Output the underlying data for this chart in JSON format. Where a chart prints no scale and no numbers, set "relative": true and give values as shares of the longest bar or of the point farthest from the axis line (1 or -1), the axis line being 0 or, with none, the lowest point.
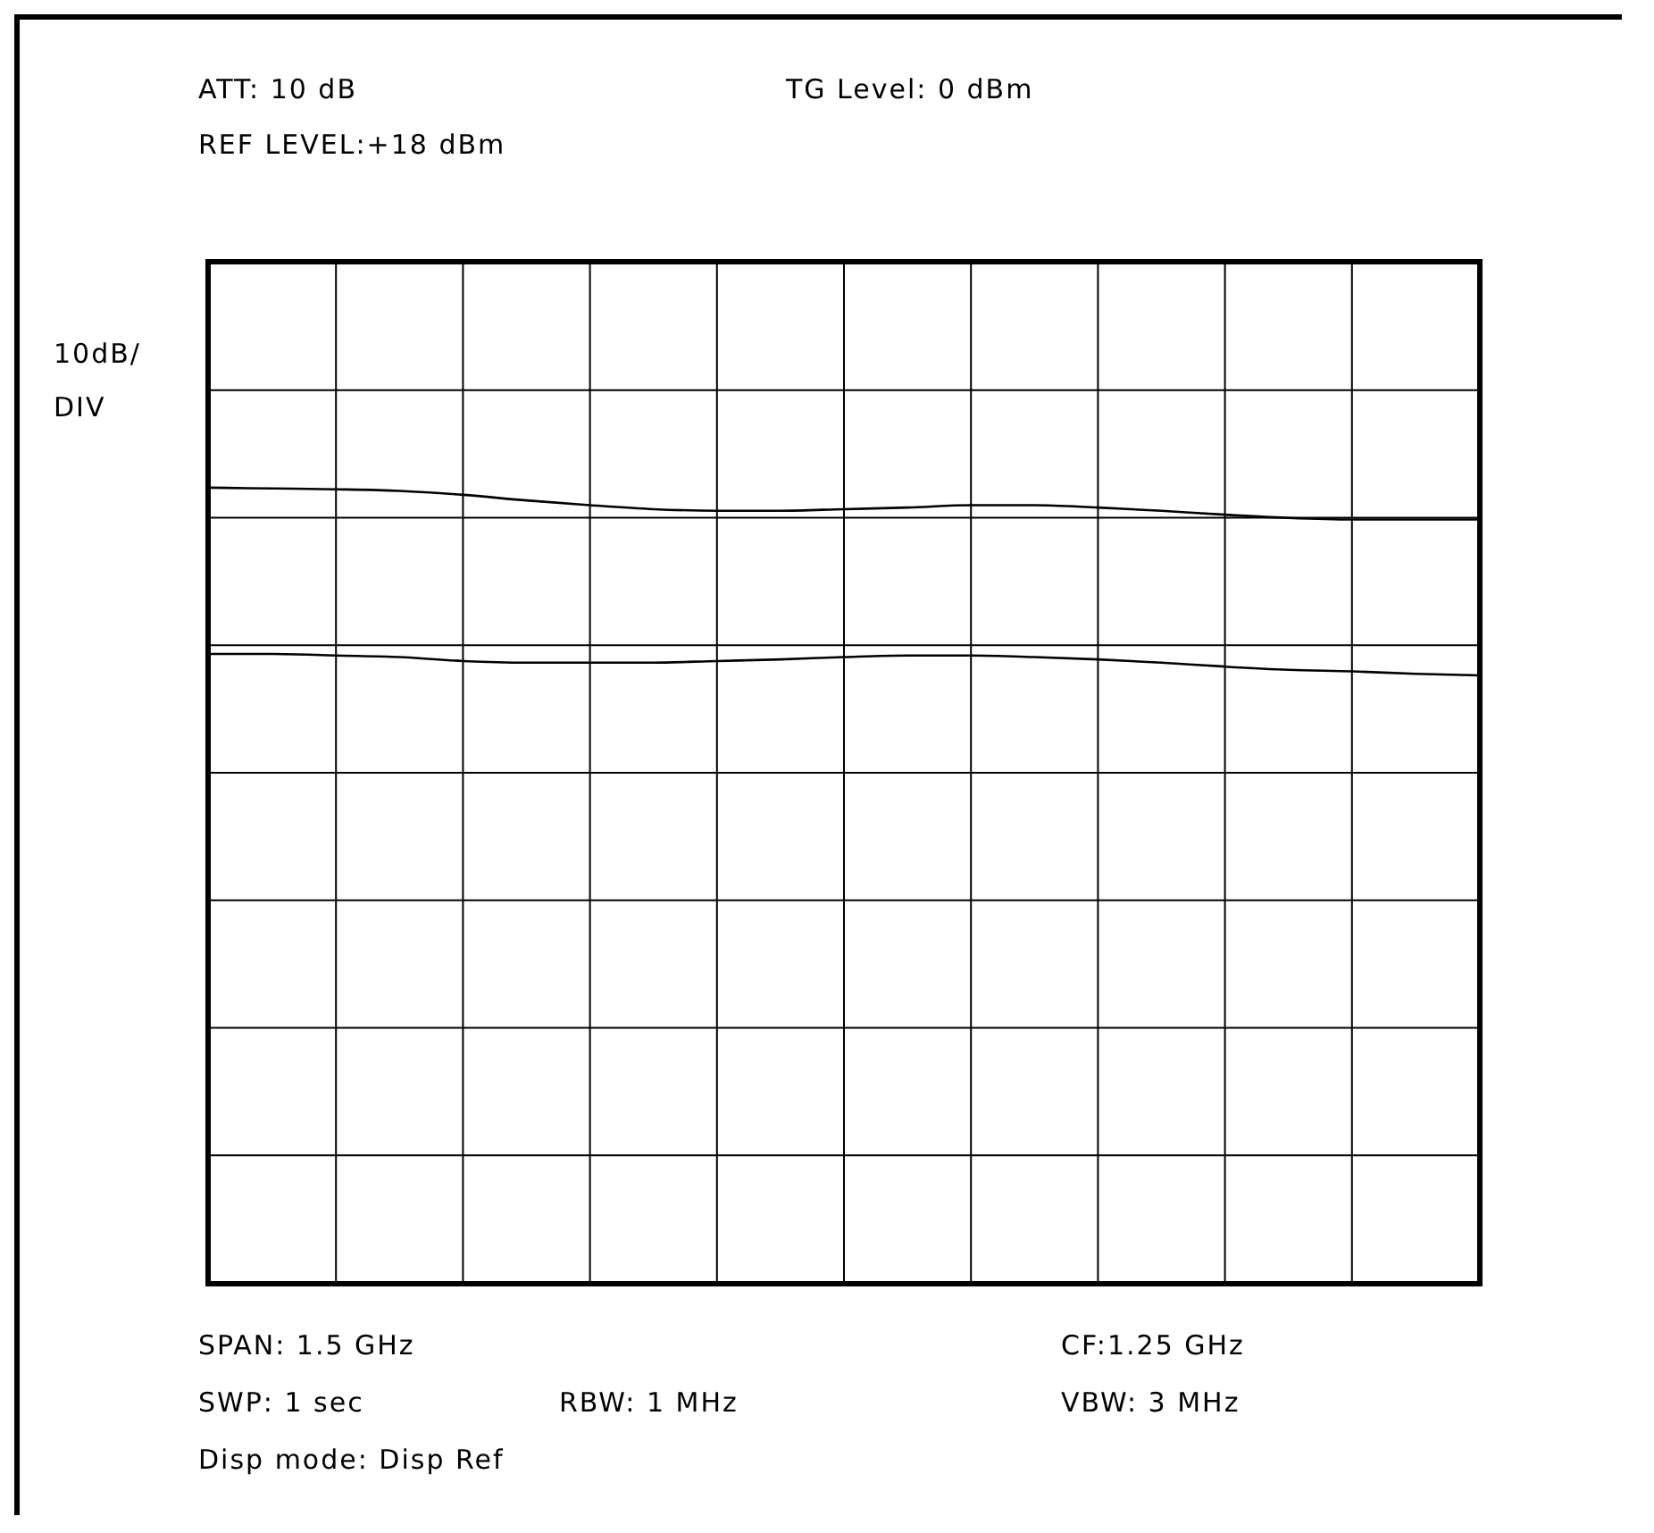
{
  "chart_data": {
    "type": "line",
    "relative": true,
    "grid": true,
    "categories": [
      null,
      null,
      null,
      null,
      null,
      null,
      null,
      null,
      null,
      null,
      null,
      null,
      null,
      null,
      null,
      null,
      null,
      null,
      null,
      null,
      null
    ],
    "series": [
      {
        "color": "#000000",
        "values": [
          1,
          0.999,
          0.998,
          0.996,
          0.991,
          0.984,
          0.978,
          0.973,
          0.971,
          0.971,
          0.973,
          0.975,
          0.978,
          0.978,
          0.975,
          0.971,
          0.966,
          0.962,
          0.96,
          0.96,
          0.96
        ]
      },
      {
        "color": "#000000",
        "values": [
          0.791,
          0.791,
          0.789,
          0.787,
          0.782,
          0.78,
          0.78,
          0.78,
          0.782,
          0.784,
          0.787,
          0.789,
          0.789,
          0.787,
          0.784,
          0.78,
          0.775,
          0.771,
          0.769,
          0.766,
          0.764
        ]
      }
    ],
    "annotations": [
      "ATT: 10 dB",
      "TG Level: 0 dBm",
      "REF LEVEL:+18 dBm",
      "10dB/DIV",
      "SPAN: 1.5 GHz",
      "CF:1.25 GHz",
      "SWP: 1 sec",
      "RBW: 1 MHz",
      "VBW: 3 MHz",
      "Disp mode: Disp Ref"
    ]
  }
}
